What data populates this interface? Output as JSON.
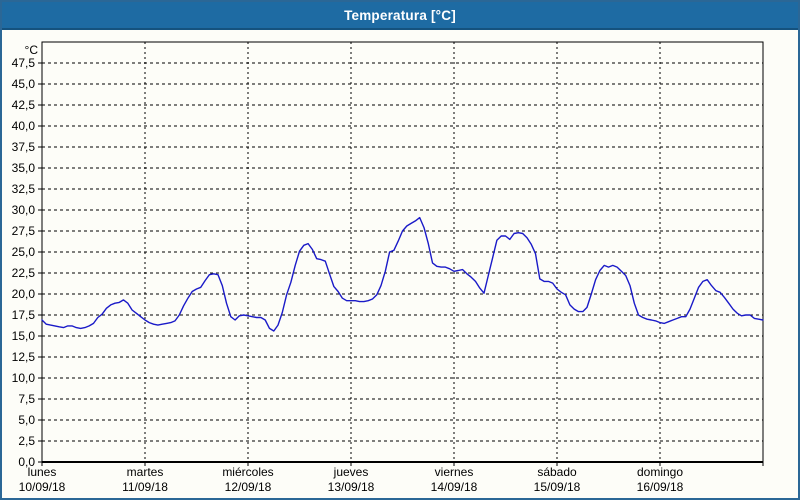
{
  "window": {
    "title": "Temperatura [°C]"
  },
  "colors": {
    "titlebar": "#1e6ba3",
    "titlebar_border": "#15527e",
    "window_border": "#2b6796",
    "panel": "#fdfdf8",
    "line": "#1a1ac8",
    "grid": "#000000",
    "frame": "#000000",
    "text": "#000000"
  },
  "chart_data": {
    "type": "line",
    "title": "Temperatura [°C]",
    "legend": "none",
    "y_axis": {
      "unit": "°C",
      "min": 0,
      "max": 50,
      "tick_step": 2.5,
      "tick_labels": [
        "0,0",
        "2,5",
        "5,0",
        "7,5",
        "10,0",
        "12,5",
        "15,0",
        "17,5",
        "20,0",
        "22,5",
        "25,0",
        "27,5",
        "30,0",
        "32,5",
        "35,0",
        "37,5",
        "40,0",
        "42,5",
        "45,0",
        "47,5"
      ],
      "grid": "dashed"
    },
    "x_axis": {
      "grid": "dashed",
      "days": [
        {
          "name": "lunes",
          "date": "10/09/18"
        },
        {
          "name": "martes",
          "date": "11/09/18"
        },
        {
          "name": "miércoles",
          "date": "12/09/18"
        },
        {
          "name": "jueves",
          "date": "13/09/18"
        },
        {
          "name": "viernes",
          "date": "14/09/18"
        },
        {
          "name": "sábado",
          "date": "15/09/18"
        },
        {
          "name": "domingo",
          "date": "16/09/18"
        }
      ]
    },
    "series": [
      {
        "name": "Temperatura",
        "color": "#1a1ac8",
        "sampling": "hourly",
        "values": [
          16.9,
          16.4,
          16.3,
          16.2,
          16.1,
          16.0,
          16.2,
          16.2,
          16.0,
          15.9,
          16.0,
          16.2,
          16.5,
          17.2,
          17.6,
          18.3,
          18.7,
          18.9,
          19.0,
          19.3,
          18.9,
          18.1,
          17.7,
          17.3,
          16.9,
          16.6,
          16.4,
          16.3,
          16.4,
          16.5,
          16.6,
          16.8,
          17.5,
          18.6,
          19.5,
          20.3,
          20.6,
          20.8,
          21.6,
          22.3,
          22.4,
          22.3,
          21.0,
          18.9,
          17.3,
          16.9,
          17.4,
          17.5,
          17.4,
          17.3,
          17.2,
          17.2,
          16.9,
          15.9,
          15.6,
          16.3,
          17.8,
          19.9,
          21.4,
          23.4,
          25.1,
          25.8,
          26.0,
          25.3,
          24.2,
          24.1,
          23.9,
          22.4,
          20.9,
          20.3,
          19.5,
          19.2,
          19.2,
          19.2,
          19.1,
          19.1,
          19.2,
          19.4,
          19.9,
          21.0,
          22.7,
          25.0,
          25.2,
          26.3,
          27.5,
          28.1,
          28.4,
          28.7,
          29.1,
          27.9,
          26.0,
          23.7,
          23.3,
          23.2,
          23.2,
          23.0,
          22.7,
          22.8,
          22.9,
          22.4,
          22.0,
          21.5,
          20.7,
          20.1,
          22.2,
          24.3,
          26.4,
          26.9,
          26.9,
          26.5,
          27.2,
          27.3,
          27.2,
          26.7,
          25.9,
          24.8,
          21.8,
          21.5,
          21.5,
          21.3,
          20.6,
          20.2,
          19.9,
          18.7,
          18.2,
          17.9,
          17.9,
          18.4,
          20.0,
          21.7,
          22.8,
          23.4,
          23.2,
          23.4,
          23.2,
          22.7,
          22.2,
          21.0,
          18.9,
          17.5,
          17.2,
          17.0,
          16.9,
          16.8,
          16.6,
          16.5,
          16.7,
          16.9,
          17.1,
          17.3,
          17.3,
          18.2,
          19.5,
          20.8,
          21.5,
          21.7,
          21.0,
          20.4,
          20.2,
          19.6,
          18.9,
          18.2,
          17.7,
          17.4,
          17.5,
          17.5,
          17.1,
          17.0,
          16.9
        ]
      }
    ]
  }
}
